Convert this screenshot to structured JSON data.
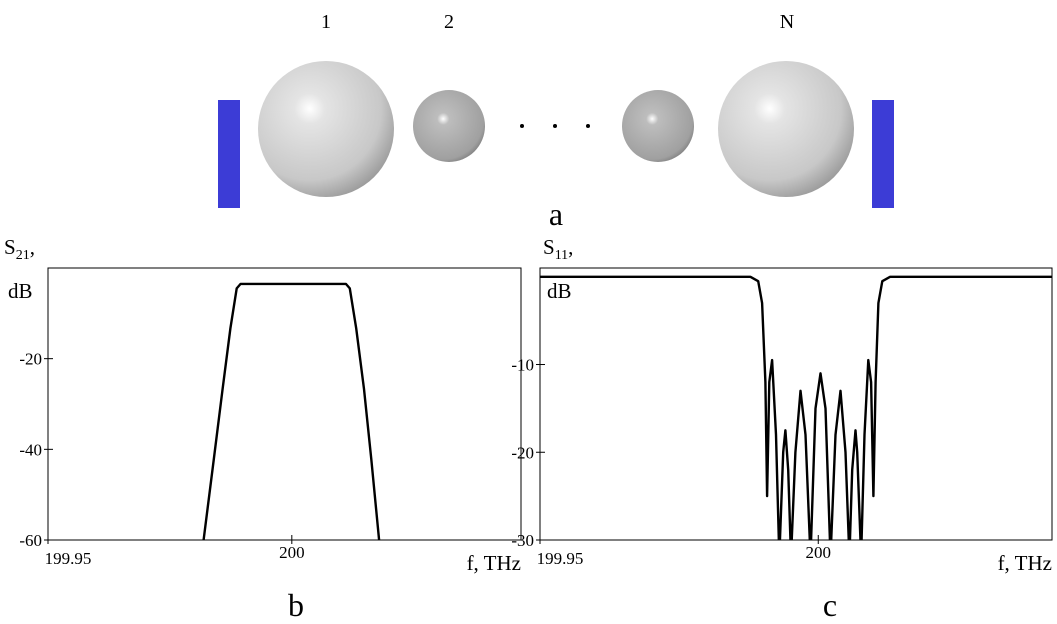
{
  "diagram": {
    "labels": [
      "1",
      "2",
      "N"
    ],
    "caption": "a"
  },
  "chart_data": [
    {
      "type": "line",
      "caption": "b",
      "ylabel": "S",
      "ylabel_sub": "21",
      "ylabel_tail": ",",
      "ylabel_unit": "dB",
      "xlabel": "f, THz",
      "xlim": [
        199.95,
        200.047
      ],
      "xticks": [
        199.95,
        200
      ],
      "ylim": [
        -60,
        0
      ],
      "yticks": [
        -20,
        -40,
        -60
      ],
      "x": [
        199.9819,
        199.984,
        199.9858,
        199.9874,
        199.9887,
        199.9895,
        200.0111,
        200.0119,
        200.0132,
        200.0148,
        200.0163,
        200.0179
      ],
      "series": [
        {
          "color": "#000000",
          "values": [
            -60,
            -42.2,
            -26.7,
            -13.3,
            -4.5,
            -3.5,
            -3.5,
            -4.5,
            -13.3,
            -26.7,
            -42.2,
            -60
          ]
        }
      ]
    },
    {
      "type": "line",
      "caption": "c",
      "ylabel": "S",
      "ylabel_sub": "11",
      "ylabel_tail": ",",
      "ylabel_unit": "dB",
      "xlabel": "f, THz",
      "xlim": [
        199.95,
        200.042
      ],
      "xticks": [
        199.95,
        200
      ],
      "ylim": [
        -30,
        1
      ],
      "yticks": [
        -10,
        -20,
        -30
      ],
      "x": [
        199.95,
        199.9878,
        199.9892,
        199.9899,
        199.9905,
        199.9908,
        199.9912,
        199.9917,
        199.9924,
        199.993,
        199.9937,
        199.9941,
        199.9946,
        199.9951,
        199.9959,
        199.9968,
        199.9977,
        199.9986,
        199.9995,
        200.0004,
        200.0013,
        200.0022,
        200.0031,
        200.004,
        200.0049,
        200.0056,
        200.0061,
        200.0067,
        200.007,
        200.0077,
        200.0083,
        200.009,
        200.0095,
        200.0099,
        200.0103,
        200.0108,
        200.0115,
        200.0129,
        200.042
      ],
      "series": [
        {
          "color": "#000000",
          "values": [
            0,
            0,
            -0.5,
            -3,
            -12,
            -25,
            -12,
            -9.5,
            -18,
            -32,
            -20,
            -17.5,
            -22,
            -32,
            -20,
            -13,
            -18,
            -32,
            -15,
            -11,
            -15,
            -32,
            -18,
            -13,
            -20,
            -32,
            -22,
            -17.5,
            -20,
            -32,
            -18,
            -9.5,
            -12,
            -25,
            -12,
            -3,
            -0.5,
            0,
            0
          ]
        }
      ]
    }
  ]
}
